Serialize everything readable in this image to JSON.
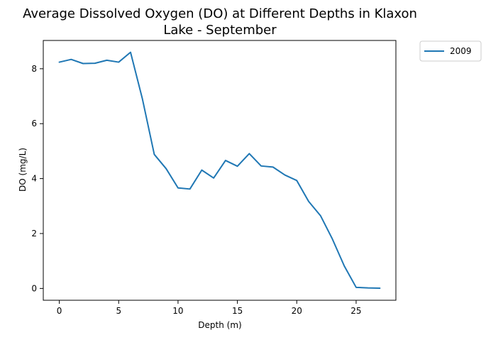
{
  "chart_data": {
    "type": "line",
    "title": "Average Dissolved Oxygen (DO) at Different Depths in Klaxon Lake - September",
    "title_lines": [
      "Average Dissolved Oxygen (DO) at Different Depths in Klaxon",
      "Lake - September"
    ],
    "xlabel": "Depth (m)",
    "ylabel": "DO (mg/L)",
    "xlim": [
      -1.35,
      28.35
    ],
    "ylim": [
      -0.43,
      9.03
    ],
    "xticks": [
      0,
      5,
      10,
      15,
      20,
      25
    ],
    "yticks": [
      0,
      2,
      4,
      6,
      8
    ],
    "grid": false,
    "legend": {
      "position": "outside-top-right",
      "entries": [
        "2009"
      ]
    },
    "series": [
      {
        "name": "2009",
        "color": "#1f77b4",
        "x": [
          0,
          1,
          2,
          3,
          4,
          5,
          6,
          7,
          8,
          9,
          10,
          11,
          12,
          13,
          14,
          15,
          16,
          17,
          18,
          19,
          20,
          21,
          22,
          23,
          24,
          25,
          26,
          27
        ],
        "values": [
          8.24,
          8.34,
          8.19,
          8.2,
          8.31,
          8.24,
          8.6,
          6.9,
          4.88,
          4.36,
          3.66,
          3.62,
          4.31,
          4.02,
          4.66,
          4.45,
          4.91,
          4.46,
          4.42,
          4.13,
          3.93,
          3.17,
          2.65,
          1.8,
          0.82,
          0.04,
          0.02,
          0.01
        ]
      }
    ]
  }
}
